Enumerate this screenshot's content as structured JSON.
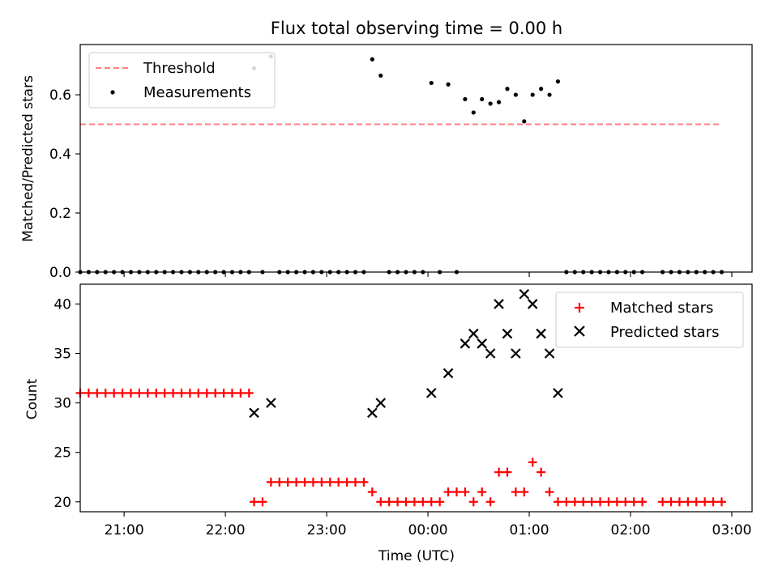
{
  "title": "Flux total observing time = 0.00 h",
  "colors": {
    "threshold": "#ff7f7f",
    "measurements": "#000000",
    "matched": "#ff0000",
    "predicted": "#000000"
  },
  "chart_data": [
    {
      "type": "scatter",
      "title": "Flux total observing time = 0.00 h",
      "xlabel": "",
      "ylabel": "Matched/Predicted stars",
      "xlim": [
        "20:34",
        "03:12"
      ],
      "ylim": [
        0,
        0.77
      ],
      "yticks": [
        0.0,
        0.2,
        0.4,
        0.6
      ],
      "ytick_labels": [
        "0.0",
        "0.2",
        "0.4",
        "0.6"
      ],
      "x_ticks": [
        "21:00",
        "22:00",
        "23:00",
        "00:00",
        "01:00",
        "02:00",
        "03:00"
      ],
      "legend_position": "top-left",
      "threshold": {
        "name": "Threshold",
        "style": "dashed",
        "y": 0.5,
        "x_start": "20:34",
        "x_end": "02:54"
      },
      "series": [
        {
          "name": "Measurements",
          "marker": "dot",
          "points": [
            [
              "20:34",
              0
            ],
            [
              "20:39",
              0
            ],
            [
              "20:44",
              0
            ],
            [
              "20:49",
              0
            ],
            [
              "20:54",
              0
            ],
            [
              "20:59",
              0
            ],
            [
              "21:04",
              0
            ],
            [
              "21:09",
              0
            ],
            [
              "21:14",
              0
            ],
            [
              "21:19",
              0
            ],
            [
              "21:24",
              0
            ],
            [
              "21:29",
              0
            ],
            [
              "21:34",
              0
            ],
            [
              "21:39",
              0
            ],
            [
              "21:44",
              0
            ],
            [
              "21:49",
              0
            ],
            [
              "21:54",
              0
            ],
            [
              "21:59",
              0
            ],
            [
              "22:04",
              0
            ],
            [
              "22:09",
              0
            ],
            [
              "22:14",
              0
            ],
            [
              "22:17",
              0.69
            ],
            [
              "22:22",
              0
            ],
            [
              "22:27",
              0.73
            ],
            [
              "22:32",
              0
            ],
            [
              "22:37",
              0
            ],
            [
              "22:42",
              0
            ],
            [
              "22:47",
              0
            ],
            [
              "22:52",
              0
            ],
            [
              "22:57",
              0
            ],
            [
              "23:02",
              0
            ],
            [
              "23:07",
              0
            ],
            [
              "23:12",
              0
            ],
            [
              "23:17",
              0
            ],
            [
              "23:22",
              0
            ],
            [
              "23:27",
              0.72
            ],
            [
              "23:32",
              0.665
            ],
            [
              "23:37",
              0
            ],
            [
              "23:42",
              0
            ],
            [
              "23:47",
              0
            ],
            [
              "23:52",
              0
            ],
            [
              "23:57",
              0
            ],
            [
              "00:02",
              0.64
            ],
            [
              "00:07",
              0
            ],
            [
              "00:12",
              0.635
            ],
            [
              "00:17",
              0
            ],
            [
              "00:22",
              0.585
            ],
            [
              "00:27",
              0.54
            ],
            [
              "00:32",
              0.585
            ],
            [
              "00:37",
              0.57
            ],
            [
              "00:42",
              0.575
            ],
            [
              "00:47",
              0.62
            ],
            [
              "00:52",
              0.6
            ],
            [
              "00:57",
              0.51
            ],
            [
              "01:02",
              0.6
            ],
            [
              "01:07",
              0.62
            ],
            [
              "01:12",
              0.6
            ],
            [
              "01:17",
              0.645
            ],
            [
              "01:22",
              0
            ],
            [
              "01:27",
              0
            ],
            [
              "01:32",
              0
            ],
            [
              "01:37",
              0
            ],
            [
              "01:42",
              0
            ],
            [
              "01:47",
              0
            ],
            [
              "01:52",
              0
            ],
            [
              "01:57",
              0
            ],
            [
              "02:02",
              0
            ],
            [
              "02:07",
              0
            ],
            [
              "02:19",
              0
            ],
            [
              "02:24",
              0
            ],
            [
              "02:29",
              0
            ],
            [
              "02:34",
              0
            ],
            [
              "02:39",
              0
            ],
            [
              "02:44",
              0
            ],
            [
              "02:49",
              0
            ],
            [
              "02:54",
              0
            ]
          ]
        }
      ]
    },
    {
      "type": "scatter",
      "title": "",
      "xlabel": "Time (UTC)",
      "ylabel": "Count",
      "xlim": [
        "20:34",
        "03:12"
      ],
      "ylim": [
        19,
        42
      ],
      "yticks": [
        20,
        25,
        30,
        35,
        40
      ],
      "ytick_labels": [
        "20",
        "25",
        "30",
        "35",
        "40"
      ],
      "x_ticks": [
        "21:00",
        "22:00",
        "23:00",
        "00:00",
        "01:00",
        "02:00",
        "03:00"
      ],
      "legend_position": "top-right",
      "series": [
        {
          "name": "Matched stars",
          "marker": "plus",
          "points": [
            [
              "20:34",
              31
            ],
            [
              "20:39",
              31
            ],
            [
              "20:44",
              31
            ],
            [
              "20:49",
              31
            ],
            [
              "20:54",
              31
            ],
            [
              "20:59",
              31
            ],
            [
              "21:04",
              31
            ],
            [
              "21:09",
              31
            ],
            [
              "21:14",
              31
            ],
            [
              "21:19",
              31
            ],
            [
              "21:24",
              31
            ],
            [
              "21:29",
              31
            ],
            [
              "21:34",
              31
            ],
            [
              "21:39",
              31
            ],
            [
              "21:44",
              31
            ],
            [
              "21:49",
              31
            ],
            [
              "21:54",
              31
            ],
            [
              "21:59",
              31
            ],
            [
              "22:04",
              31
            ],
            [
              "22:09",
              31
            ],
            [
              "22:14",
              31
            ],
            [
              "22:17",
              20
            ],
            [
              "22:22",
              20
            ],
            [
              "22:27",
              22
            ],
            [
              "22:32",
              22
            ],
            [
              "22:37",
              22
            ],
            [
              "22:42",
              22
            ],
            [
              "22:47",
              22
            ],
            [
              "22:52",
              22
            ],
            [
              "22:57",
              22
            ],
            [
              "23:02",
              22
            ],
            [
              "23:07",
              22
            ],
            [
              "23:12",
              22
            ],
            [
              "23:17",
              22
            ],
            [
              "23:22",
              22
            ],
            [
              "23:27",
              21
            ],
            [
              "23:32",
              20
            ],
            [
              "23:37",
              20
            ],
            [
              "23:42",
              20
            ],
            [
              "23:47",
              20
            ],
            [
              "23:52",
              20
            ],
            [
              "23:57",
              20
            ],
            [
              "00:02",
              20
            ],
            [
              "00:07",
              20
            ],
            [
              "00:12",
              21
            ],
            [
              "00:17",
              21
            ],
            [
              "00:22",
              21
            ],
            [
              "00:27",
              20
            ],
            [
              "00:32",
              21
            ],
            [
              "00:37",
              20
            ],
            [
              "00:42",
              23
            ],
            [
              "00:47",
              23
            ],
            [
              "00:52",
              21
            ],
            [
              "00:57",
              21
            ],
            [
              "01:02",
              24
            ],
            [
              "01:07",
              23
            ],
            [
              "01:12",
              21
            ],
            [
              "01:17",
              20
            ],
            [
              "01:22",
              20
            ],
            [
              "01:27",
              20
            ],
            [
              "01:32",
              20
            ],
            [
              "01:37",
              20
            ],
            [
              "01:42",
              20
            ],
            [
              "01:47",
              20
            ],
            [
              "01:52",
              20
            ],
            [
              "01:57",
              20
            ],
            [
              "02:02",
              20
            ],
            [
              "02:07",
              20
            ],
            [
              "02:19",
              20
            ],
            [
              "02:24",
              20
            ],
            [
              "02:29",
              20
            ],
            [
              "02:34",
              20
            ],
            [
              "02:39",
              20
            ],
            [
              "02:44",
              20
            ],
            [
              "02:49",
              20
            ],
            [
              "02:54",
              20
            ]
          ]
        },
        {
          "name": "Predicted stars",
          "marker": "x",
          "points": [
            [
              "22:17",
              29
            ],
            [
              "22:27",
              30
            ],
            [
              "23:27",
              29
            ],
            [
              "23:32",
              30
            ],
            [
              "00:02",
              31
            ],
            [
              "00:12",
              33
            ],
            [
              "00:22",
              36
            ],
            [
              "00:27",
              37
            ],
            [
              "00:32",
              36
            ],
            [
              "00:37",
              35
            ],
            [
              "00:42",
              40
            ],
            [
              "00:47",
              37
            ],
            [
              "00:52",
              35
            ],
            [
              "00:57",
              41
            ],
            [
              "01:02",
              40
            ],
            [
              "01:07",
              37
            ],
            [
              "01:12",
              35
            ],
            [
              "01:17",
              31
            ]
          ]
        }
      ]
    }
  ]
}
